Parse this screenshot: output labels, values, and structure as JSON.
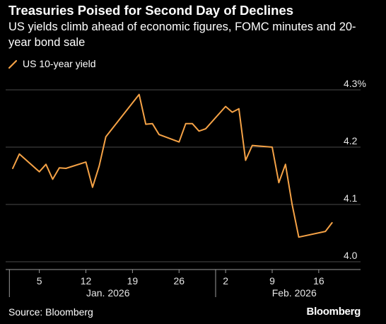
{
  "title": "Treasuries Poised for Second Day of Declines",
  "subtitle": "US yields climb ahead of economic figures, FOMC minutes and 20-year bond sale",
  "source": "Source: Bloomberg",
  "brand": "Bloomberg",
  "colors": {
    "background": "#000000",
    "line": "#f5a246",
    "grid": "#4a4a4a",
    "text": "#ffffff",
    "axis_text": "#e6e6e6"
  },
  "chart_data": {
    "type": "line",
    "series": [
      {
        "name": "US 10-year yield",
        "x": [
          "2026-01-01",
          "2026-01-02",
          "2026-01-05",
          "2026-01-06",
          "2026-01-07",
          "2026-01-08",
          "2026-01-09",
          "2026-01-12",
          "2026-01-13",
          "2026-01-14",
          "2026-01-15",
          "2026-01-20",
          "2026-01-21",
          "2026-01-22",
          "2026-01-23",
          "2026-01-26",
          "2026-01-27",
          "2026-01-28",
          "2026-01-29",
          "2026-01-30",
          "2026-02-02",
          "2026-02-03",
          "2026-02-04",
          "2026-02-05",
          "2026-02-06",
          "2026-02-09",
          "2026-02-10",
          "2026-02-11",
          "2026-02-12",
          "2026-02-13",
          "2026-02-17",
          "2026-02-18"
        ],
        "values": [
          4.163,
          4.188,
          4.157,
          4.17,
          4.144,
          4.164,
          4.163,
          4.174,
          4.13,
          4.167,
          4.218,
          4.292,
          4.24,
          4.241,
          4.222,
          4.209,
          4.241,
          4.241,
          4.228,
          4.232,
          4.271,
          4.261,
          4.267,
          4.177,
          4.203,
          4.2,
          4.138,
          4.17,
          4.1,
          4.043,
          4.053,
          4.068
        ]
      }
    ],
    "yticks": [
      "4.3%",
      "4.2",
      "4.1",
      "4.0"
    ],
    "ylim": [
      4.0,
      4.3
    ],
    "xticks": [
      {
        "date": "2026-01-05",
        "label": "5"
      },
      {
        "date": "2026-01-12",
        "label": "12"
      },
      {
        "date": "2026-01-19",
        "label": "19"
      },
      {
        "date": "2026-01-26",
        "label": "26"
      },
      {
        "date": "2026-02-02",
        "label": "2"
      },
      {
        "date": "2026-02-09",
        "label": "9"
      },
      {
        "date": "2026-02-16",
        "label": "16"
      }
    ],
    "month_labels": [
      {
        "date": "2026-01-15",
        "label": "Jan. 2026"
      },
      {
        "date": "2026-02-12",
        "label": "Feb. 2026"
      }
    ],
    "grid": true,
    "legend_position": "top-left"
  }
}
